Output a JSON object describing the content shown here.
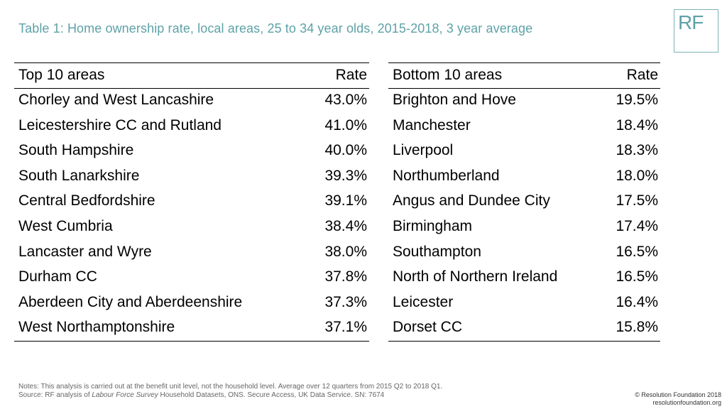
{
  "title": "Table 1: Home ownership rate, local areas, 25 to 34 year olds, 2015-2018, 3 year average",
  "logo": {
    "text": "RF"
  },
  "top_table": {
    "header_area": "Top 10 areas",
    "header_rate": "Rate",
    "rows": [
      {
        "area": "Chorley and West Lancashire",
        "rate": "43.0%"
      },
      {
        "area": "Leicestershire CC and Rutland",
        "rate": "41.0%"
      },
      {
        "area": "South Hampshire",
        "rate": "40.0%"
      },
      {
        "area": "South Lanarkshire",
        "rate": "39.3%"
      },
      {
        "area": "Central Bedfordshire",
        "rate": "39.1%"
      },
      {
        "area": "West Cumbria",
        "rate": "38.4%"
      },
      {
        "area": "Lancaster and Wyre",
        "rate": "38.0%"
      },
      {
        "area": "Durham CC",
        "rate": "37.8%"
      },
      {
        "area": "Aberdeen City and Aberdeenshire",
        "rate": "37.3%"
      },
      {
        "area": "West Northamptonshire",
        "rate": "37.1%"
      }
    ]
  },
  "bottom_table": {
    "header_area": "Bottom 10 areas",
    "header_rate": "Rate",
    "rows": [
      {
        "area": "Brighton and Hove",
        "rate": "19.5%"
      },
      {
        "area": "Manchester",
        "rate": "18.4%"
      },
      {
        "area": "Liverpool",
        "rate": "18.3%"
      },
      {
        "area": "Northumberland",
        "rate": "18.0%"
      },
      {
        "area": "Angus and Dundee City",
        "rate": "17.5%"
      },
      {
        "area": "Birmingham",
        "rate": "17.4%"
      },
      {
        "area": "Southampton",
        "rate": "16.5%"
      },
      {
        "area": "North of Northern Ireland",
        "rate": "16.5%"
      },
      {
        "area": "Leicester",
        "rate": "16.4%"
      },
      {
        "area": "Dorset CC",
        "rate": "15.8%"
      }
    ]
  },
  "notes": {
    "line1": "Notes: This analysis is carried out at the benefit unit level, not the household level. Average over 12 quarters from 2015 Q2 to 2018 Q1.",
    "line2_prefix": "Source: RF analysis of ",
    "line2_italic": "Labour Force Survey",
    "line2_suffix": " Household Datasets, ONS. Secure Access, UK Data Service. SN: 7674"
  },
  "copyright": {
    "line1": "© Resolution Foundation 2018",
    "line2": "resolutionfoundation.org"
  },
  "colors": {
    "accent": "#5ea2a7",
    "logo_border": "#7db2b5",
    "text": "#000000",
    "notes": "#666666"
  }
}
